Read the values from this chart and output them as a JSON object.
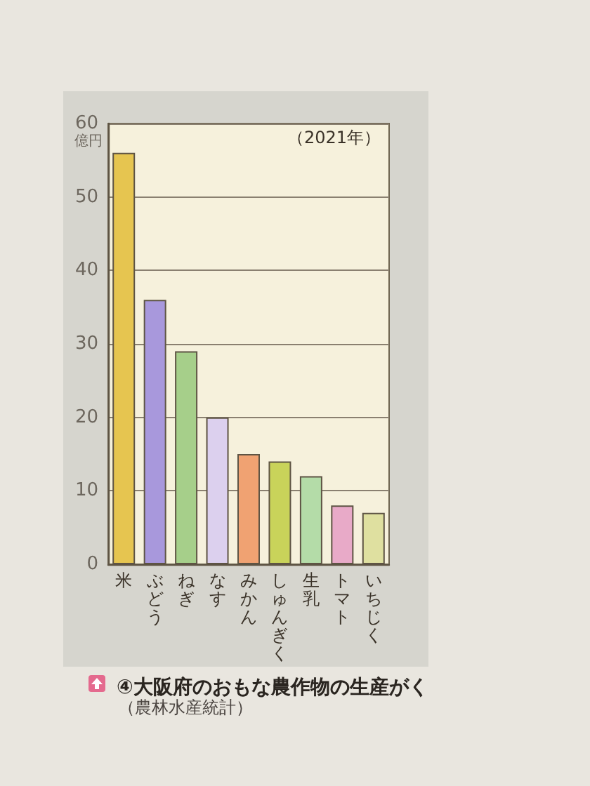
{
  "chart_data": {
    "type": "bar",
    "title": "④大阪府のおもな農作物の生産がく",
    "ylabel": "億円",
    "annotations": [
      "（2021年）",
      "（農林水産統計）"
    ],
    "categories": [
      "米",
      "ぶどう",
      "ねぎ",
      "なす",
      "みかん",
      "しゅんぎく",
      "生乳",
      "トマト",
      "いちじく"
    ],
    "values": [
      56,
      36,
      29,
      20,
      15,
      14,
      12,
      8,
      7
    ],
    "colors": [
      "#e6c550",
      "#a898dc",
      "#a6cf8a",
      "#dcd0ee",
      "#f0a272",
      "#c9d35a",
      "#b4dca8",
      "#e8aac8",
      "#dfe0a0"
    ],
    "ylim": [
      0,
      60
    ],
    "yticks": [
      0,
      10,
      20,
      30,
      40,
      50,
      60
    ],
    "grid": "y"
  }
}
